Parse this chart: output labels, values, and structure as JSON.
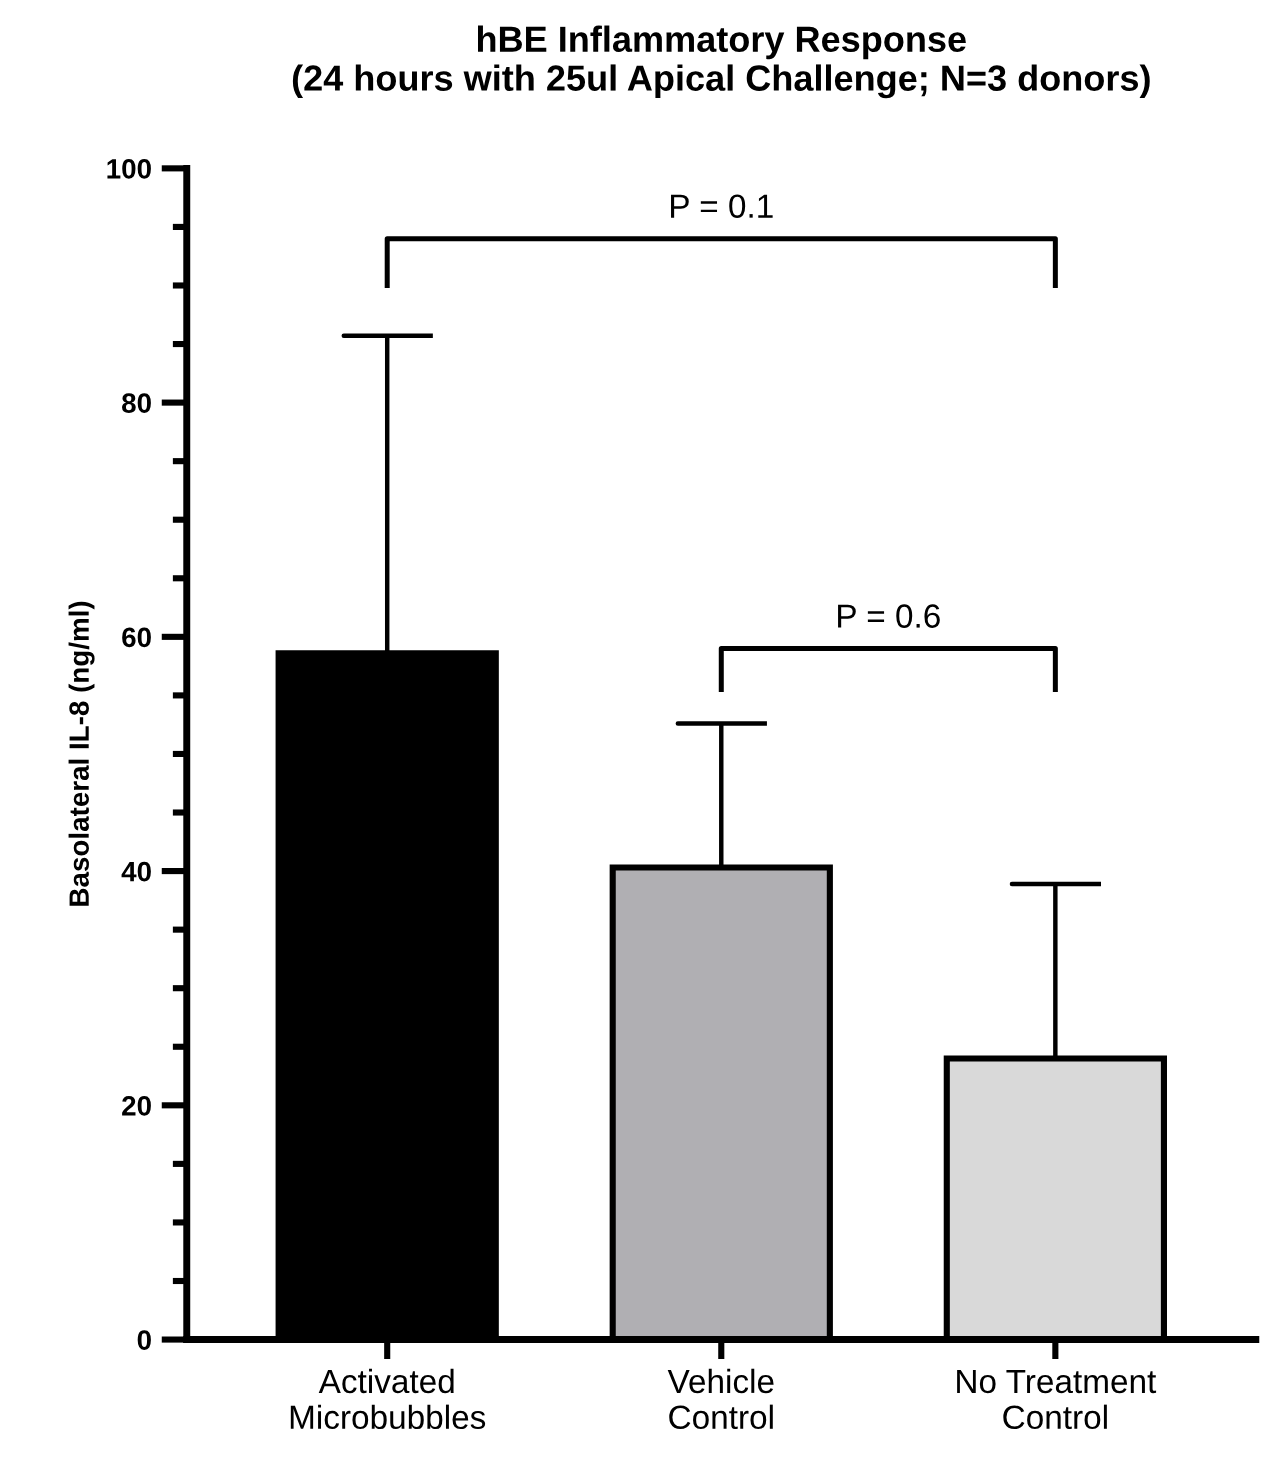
{
  "chart_data": {
    "type": "bar",
    "title": "hBE Inflammatory Response\n(24 hours with 25ul Apical Challenge; N=3 donors)",
    "ylabel": "Basolateral IL-8 (ng/ml)",
    "categories": [
      "Activated\nMicrobubbles",
      "Vehicle\nControl",
      "No Treatment\nControl"
    ],
    "values": [
      58.6,
      40.3,
      24.0
    ],
    "colors": [
      "#000000",
      "#b0afb3",
      "#d9d9d9"
    ],
    "errors": [
      [
        58.6,
        85.7
      ],
      [
        40.3,
        52.6
      ],
      [
        24.0,
        38.9
      ]
    ],
    "ylim": [
      0,
      100
    ],
    "yticks": [
      0,
      20,
      40,
      60,
      80,
      100
    ],
    "annotations": [
      "P = 0.1",
      "P = 0.6"
    ],
    "grid": false,
    "legend": false
  }
}
